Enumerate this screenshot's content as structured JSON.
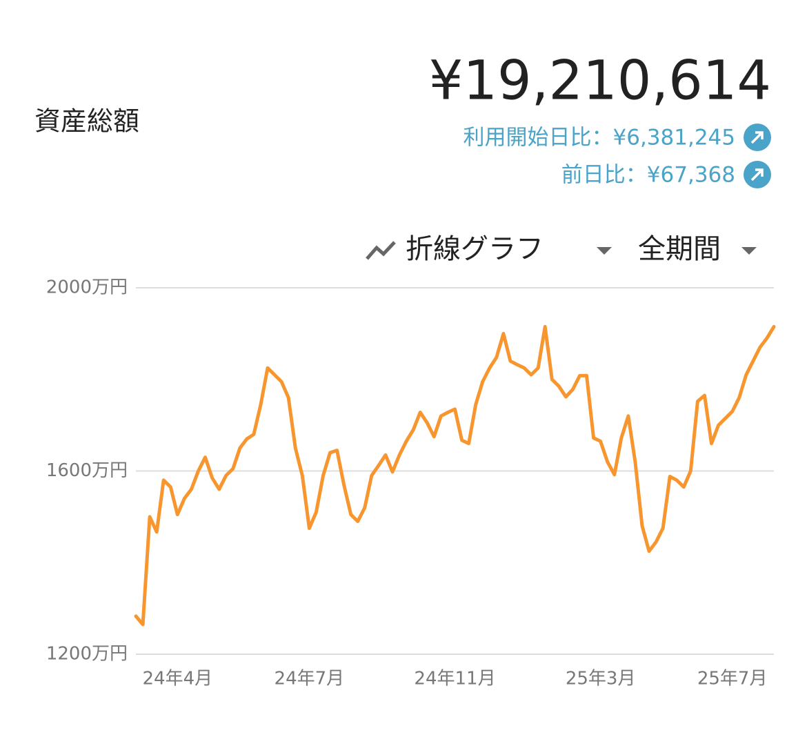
{
  "header": {
    "label": "資産総額",
    "total": "¥19,210,614",
    "comparisons": [
      "利用開始日比：¥6,381,245",
      "前日比：¥67,368"
    ]
  },
  "controls": {
    "chart_type": "折線グラフ",
    "period": "全期間"
  },
  "chart_data": {
    "type": "line",
    "categories": [
      null,
      null,
      null,
      null,
      null,
      null,
      "24年4月",
      null,
      null,
      null,
      null,
      null,
      null,
      null,
      null,
      null,
      null,
      null,
      null,
      null,
      null,
      null,
      null,
      null,
      null,
      "24年7月",
      null,
      null,
      null,
      null,
      null,
      null,
      null,
      null,
      null,
      null,
      null,
      null,
      null,
      null,
      null,
      null,
      null,
      null,
      null,
      null,
      "24年11月",
      null,
      null,
      null,
      null,
      null,
      null,
      null,
      null,
      null,
      null,
      null,
      null,
      null,
      null,
      null,
      null,
      null,
      null,
      null,
      null,
      "25年3月",
      null,
      null,
      null,
      null,
      null,
      null,
      null,
      null,
      null,
      null,
      null,
      null,
      null,
      null,
      null,
      null,
      null,
      null,
      "25年7月",
      null,
      null,
      null,
      null,
      null,
      null
    ],
    "series": [
      {
        "color": "#f7962f",
        "values": [
          1283,
          1265,
          1500,
          1467,
          1580,
          1565,
          1505,
          1540,
          1560,
          1600,
          1630,
          1585,
          1560,
          1590,
          1605,
          1650,
          1670,
          1680,
          1745,
          1825,
          1810,
          1795,
          1760,
          1650,
          1590,
          1475,
          1510,
          1590,
          1640,
          1645,
          1570,
          1505,
          1490,
          1520,
          1590,
          1612,
          1635,
          1598,
          1635,
          1665,
          1690,
          1728,
          1705,
          1675,
          1720,
          1728,
          1735,
          1667,
          1660,
          1745,
          1795,
          1825,
          1848,
          1900,
          1840,
          1832,
          1825,
          1810,
          1825,
          1915,
          1800,
          1785,
          1762,
          1778,
          1808,
          1808,
          1672,
          1665,
          1620,
          1592,
          1672,
          1720,
          1620,
          1480,
          1425,
          1445,
          1475,
          1588,
          1580,
          1565,
          1600,
          1752,
          1765,
          1660,
          1700,
          1715,
          1730,
          1760,
          1810,
          1840,
          1870,
          1890,
          1915
        ]
      }
    ],
    "ylim": [
      1200,
      2000
    ],
    "yticks": [
      {
        "value": 1200,
        "label": "1200万円"
      },
      {
        "value": 1600,
        "label": "1600万円"
      },
      {
        "value": 2000,
        "label": "2000万円"
      }
    ],
    "grid": true
  }
}
